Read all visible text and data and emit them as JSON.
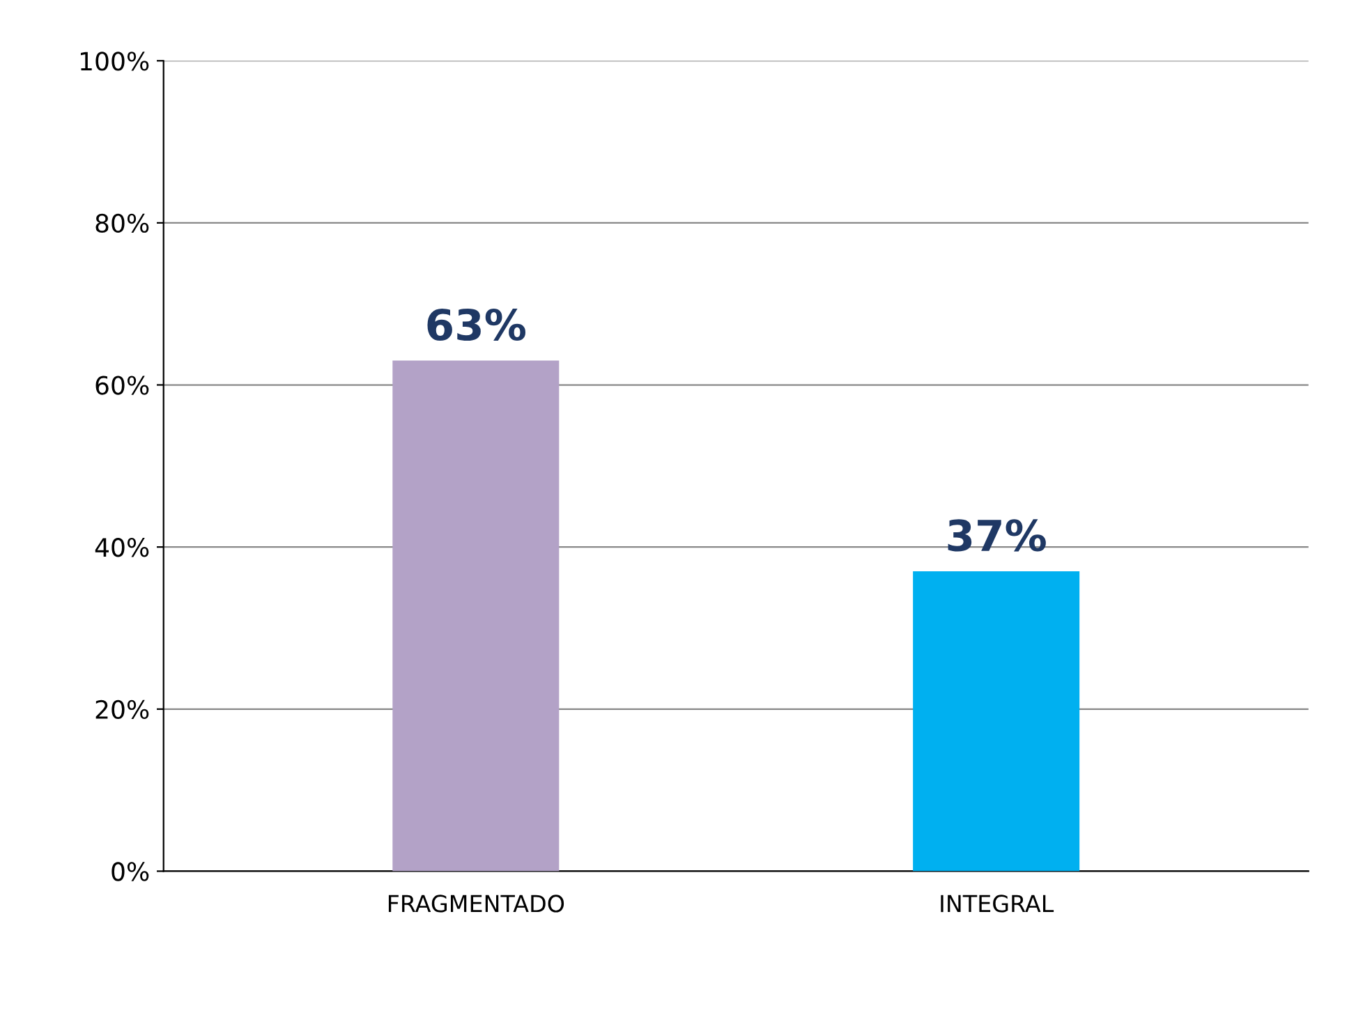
{
  "chart_data": {
    "type": "bar",
    "categories": [
      "FRAGMENTADO",
      "INTEGRAL"
    ],
    "values": [
      63,
      37
    ],
    "colors": [
      "#b3a2c7",
      "#00b0f0"
    ],
    "value_labels": [
      "63%",
      "37%"
    ],
    "ylim": [
      0,
      100
    ],
    "yticks": [
      {
        "value": 0,
        "label": "0%"
      },
      {
        "value": 20,
        "label": "20%"
      },
      {
        "value": 40,
        "label": "40%"
      },
      {
        "value": 60,
        "label": "60%"
      },
      {
        "value": 80,
        "label": "80%"
      },
      {
        "value": 100,
        "label": "100%"
      }
    ],
    "grid": "y"
  }
}
